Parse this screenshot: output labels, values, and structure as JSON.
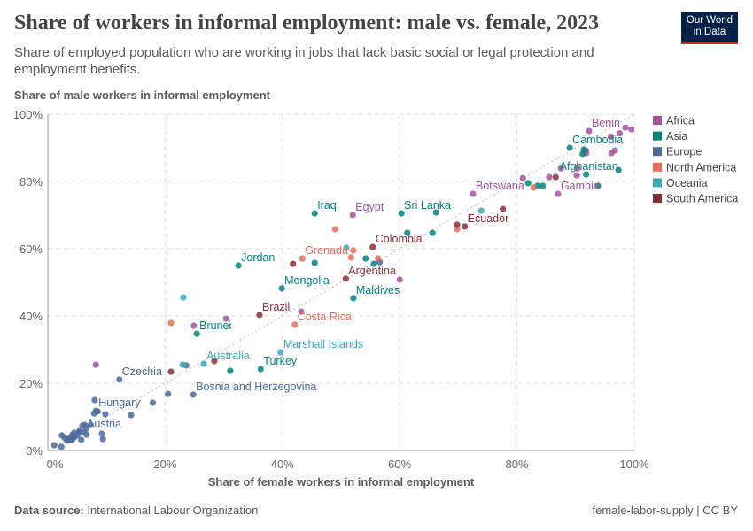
{
  "header": {
    "title": "Share of workers in informal employment: male vs. female, 2023",
    "subtitle": "Share of employed population who are working in jobs that lack basic social or legal protection and employment benefits.",
    "logo_line1": "Our World",
    "logo_line2": "in Data"
  },
  "footer": {
    "source_label": "Data source:",
    "source": "International Labour Organization",
    "right": "female-labor-supply | CC BY"
  },
  "chart_data": {
    "type": "scatter",
    "title": "Share of workers in informal employment: male vs. female, 2023",
    "xlabel": "Share of female workers in informal employment",
    "ylabel": "Share of male workers in informal employment",
    "xlim": [
      0,
      100
    ],
    "ylim": [
      0,
      100
    ],
    "xticks": [
      "0%",
      "20%",
      "40%",
      "60%",
      "80%",
      "100%"
    ],
    "yticks": [
      "0%",
      "20%",
      "40%",
      "60%",
      "80%",
      "100%"
    ],
    "grid": true,
    "legend_placement": "right",
    "reference_line": "y = x",
    "series": [
      {
        "name": "Africa",
        "color": "#a2559c",
        "points": [
          [
            92.3,
            95,
            "Benin"
          ],
          [
            96,
            93.3
          ],
          [
            97.5,
            94.3
          ],
          [
            99.5,
            95.5
          ],
          [
            98.5,
            96
          ],
          [
            91.8,
            89.2
          ],
          [
            91.8,
            88.4
          ],
          [
            96.1,
            88.4
          ],
          [
            96.7,
            89.2
          ],
          [
            87.5,
            83.9
          ],
          [
            90.3,
            83.9
          ],
          [
            90.2,
            81.8
          ],
          [
            85.5,
            81.3
          ],
          [
            72.5,
            76.3,
            "Botswana"
          ],
          [
            87,
            76.3,
            "Gambia"
          ],
          [
            81,
            81
          ],
          [
            52,
            70,
            "Egypt"
          ],
          [
            60,
            50.8
          ],
          [
            43.2,
            41.3
          ],
          [
            30.4,
            39.2
          ],
          [
            24.9,
            37.1
          ],
          [
            8.2,
            25.5
          ]
        ]
      },
      {
        "name": "Asia",
        "color": "#00847e",
        "points": [
          [
            89,
            90,
            "Cambodia"
          ],
          [
            91.4,
            89.5
          ],
          [
            91.2,
            88.2
          ],
          [
            97.3,
            83.4
          ],
          [
            91.8,
            82.1,
            "Afghanistan"
          ],
          [
            81.9,
            79.5
          ],
          [
            83.5,
            78.7
          ],
          [
            84.4,
            78.7
          ],
          [
            93.8,
            78.7
          ],
          [
            45.5,
            70.5,
            "Iraq"
          ],
          [
            60.3,
            70.5,
            "Sri Lanka"
          ],
          [
            66.2,
            70.8
          ],
          [
            61.3,
            64.7
          ],
          [
            65.6,
            64.7
          ],
          [
            32.5,
            55,
            "Jordan"
          ],
          [
            45.5,
            55.8
          ],
          [
            54.2,
            57.1
          ],
          [
            55.6,
            55.5
          ],
          [
            39.9,
            48.2,
            "Mongolia"
          ],
          [
            52.1,
            45.3,
            "Maldives"
          ],
          [
            25.4,
            34.7,
            "Brunei"
          ],
          [
            31.1,
            23.7
          ],
          [
            36.3,
            24.2,
            "Turkey"
          ]
        ]
      },
      {
        "name": "Europe",
        "color": "#4c6a9c",
        "points": [
          [
            12.2,
            21.1,
            "Czechia"
          ],
          [
            24.8,
            16.6,
            "Bosnia and Herzegovina"
          ],
          [
            20.5,
            16.8
          ],
          [
            17.9,
            14.2
          ],
          [
            14.2,
            10.5
          ],
          [
            23.6,
            25.3
          ],
          [
            56.6,
            56
          ],
          [
            8,
            15
          ],
          [
            8.2,
            11.8,
            "Hungary"
          ],
          [
            8.5,
            11.6
          ],
          [
            7.9,
            11
          ],
          [
            9.8,
            10.8
          ],
          [
            9.2,
            5
          ],
          [
            1.1,
            1.6
          ],
          [
            2.3,
            1.1
          ],
          [
            2.4,
            4.5
          ],
          [
            3.3,
            2.9
          ],
          [
            3.8,
            3.2
          ],
          [
            3.9,
            3.9
          ],
          [
            4.2,
            4.7
          ],
          [
            4.5,
            3.9
          ],
          [
            5,
            4.5
          ],
          [
            5.3,
            5.3
          ],
          [
            5.4,
            5.8
          ],
          [
            5.9,
            7.4
          ],
          [
            6.3,
            7.6
          ],
          [
            6.6,
            6.6
          ],
          [
            7.3,
            7.6
          ],
          [
            5.7,
            3.2
          ],
          [
            6.2,
            5.5,
            "Austria"
          ],
          [
            6.6,
            4.7
          ],
          [
            9.4,
            3.4
          ],
          [
            4.5,
            5.3
          ],
          [
            3.5,
            3.4
          ],
          [
            2.9,
            3.7
          ],
          [
            4.1,
            3.2
          ]
        ]
      },
      {
        "name": "North America",
        "color": "#e56e5a",
        "points": [
          [
            21,
            37.9
          ],
          [
            49,
            65.8
          ],
          [
            43.4,
            57.1,
            "Grenada"
          ],
          [
            52.1,
            59.5
          ],
          [
            51.7,
            57.4
          ],
          [
            56.3,
            57.1
          ],
          [
            42.1,
            37.4,
            "Costa Rica"
          ],
          [
            69.8,
            65.8
          ],
          [
            82.8,
            78.2
          ]
        ]
      },
      {
        "name": "Oceania",
        "color": "#38aaba",
        "points": [
          [
            23.1,
            45.5
          ],
          [
            23,
            25.5
          ],
          [
            26.6,
            25.8,
            "Australia"
          ],
          [
            39.7,
            29.2,
            "Marshall Islands"
          ],
          [
            50.9,
            60.3
          ],
          [
            73.9,
            71.3
          ]
        ]
      },
      {
        "name": "South America",
        "color": "#883039",
        "points": [
          [
            21,
            23.4
          ],
          [
            28.4,
            26.6
          ],
          [
            36.1,
            40.3,
            "Brazil"
          ],
          [
            41.8,
            55.5
          ],
          [
            50.8,
            51.1,
            "Argentina"
          ],
          [
            55.4,
            60.5,
            "Colombia"
          ],
          [
            69.8,
            67.1
          ],
          [
            71.1,
            66.6,
            "Ecuador"
          ],
          [
            77.6,
            71.8
          ],
          [
            86.6,
            81.3
          ]
        ]
      }
    ]
  }
}
